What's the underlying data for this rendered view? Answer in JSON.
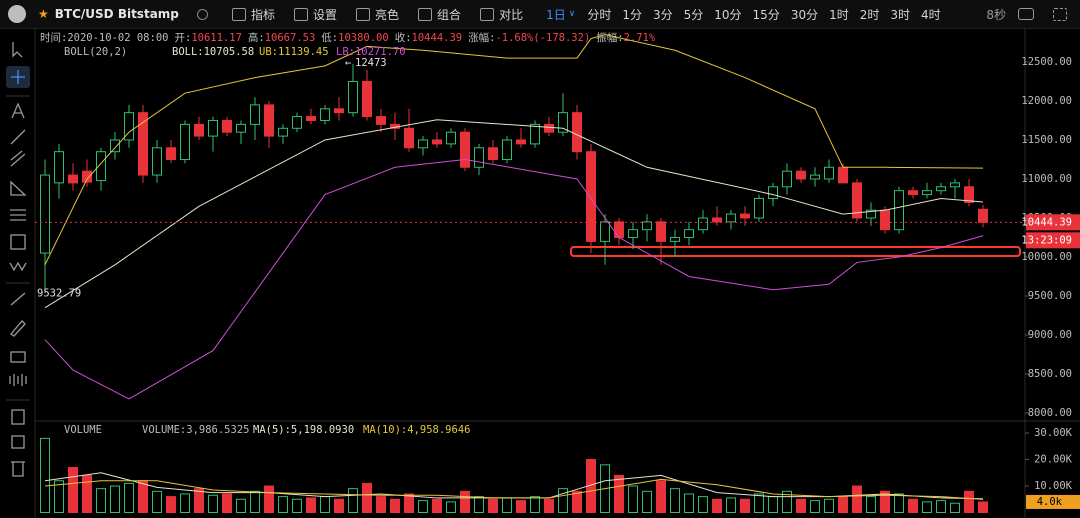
{
  "toolbar": {
    "symbol": "BTC/USD Bitstamp",
    "tools": [
      "指标",
      "设置",
      "亮色",
      "组合",
      "对比"
    ],
    "active_interval": "1日",
    "intervals": [
      "分时",
      "1分",
      "3分",
      "5分",
      "10分",
      "15分",
      "30分",
      "1时",
      "2时",
      "3时",
      "4时"
    ],
    "timer": "8秒"
  },
  "info": [
    {
      "label": "时间:",
      "value": "2020-10-02 08:00"
    },
    {
      "label": "开:",
      "value": "10611.17"
    },
    {
      "label": "高:",
      "value": "10667.53"
    },
    {
      "label": "低:",
      "value": "10380.00"
    },
    {
      "label": "收:",
      "value": "10444.39"
    },
    {
      "label": "涨幅:",
      "value": "-1.68%(-178.32)"
    },
    {
      "label": "振幅:",
      "value": "2.71%"
    }
  ],
  "chart_data": [
    {
      "type": "candlestick",
      "title": "BOLL(20,2)",
      "up_color": "#2fbf71",
      "down_color": "#e8333a",
      "ylim": [
        7910,
        12910
      ],
      "yticks": [
        {
          "value": 12500,
          "label": "12500.00"
        },
        {
          "value": 12000,
          "label": "12000.00"
        },
        {
          "value": 11500,
          "label": "11500.00"
        },
        {
          "value": 11000,
          "label": "11000.00"
        },
        {
          "value": 10500,
          "label": "10500.00"
        },
        {
          "value": 10000,
          "label": "10000.00"
        },
        {
          "value": 9500,
          "label": "9500.00"
        },
        {
          "value": 9000,
          "label": "9000.00"
        },
        {
          "value": 8500,
          "label": "8500.00"
        },
        {
          "value": 8000,
          "label": "8000.00"
        }
      ],
      "candles": [
        [
          10050,
          11250,
          9532.79,
          11050
        ],
        [
          10950,
          11450,
          10750,
          11350
        ],
        [
          11050,
          11200,
          10850,
          10950
        ],
        [
          11100,
          11250,
          10900,
          10960
        ],
        [
          10980,
          11400,
          10850,
          11350
        ],
        [
          11350,
          11600,
          11250,
          11500
        ],
        [
          11500,
          11950,
          11400,
          11850
        ],
        [
          11850,
          11950,
          10950,
          11050
        ],
        [
          11050,
          11500,
          10950,
          11400
        ],
        [
          11400,
          11500,
          11200,
          11250
        ],
        [
          11250,
          11750,
          11200,
          11700
        ],
        [
          11700,
          11800,
          11500,
          11550
        ],
        [
          11550,
          11800,
          11350,
          11750
        ],
        [
          11750,
          11800,
          11550,
          11600
        ],
        [
          11600,
          11750,
          11450,
          11700
        ],
        [
          11700,
          12050,
          11500,
          11950
        ],
        [
          11950,
          12000,
          11400,
          11550
        ],
        [
          11550,
          11700,
          11450,
          11650
        ],
        [
          11650,
          11850,
          11600,
          11800
        ],
        [
          11800,
          11900,
          11700,
          11750
        ],
        [
          11750,
          11950,
          11700,
          11900
        ],
        [
          11900,
          12050,
          11750,
          11850
        ],
        [
          11850,
          12473,
          11800,
          12250
        ],
        [
          12250,
          12400,
          11750,
          11800
        ],
        [
          11800,
          11900,
          11600,
          11700
        ],
        [
          11700,
          11850,
          11500,
          11650
        ],
        [
          11650,
          11900,
          11350,
          11400
        ],
        [
          11400,
          11550,
          11300,
          11500
        ],
        [
          11500,
          11600,
          11400,
          11450
        ],
        [
          11450,
          11650,
          11400,
          11600
        ],
        [
          11600,
          11650,
          11100,
          11150
        ],
        [
          11150,
          11450,
          11050,
          11400
        ],
        [
          11400,
          11500,
          11200,
          11250
        ],
        [
          11250,
          11550,
          11200,
          11500
        ],
        [
          11500,
          11650,
          11400,
          11450
        ],
        [
          11450,
          11750,
          11400,
          11700
        ],
        [
          11700,
          11800,
          11550,
          11600
        ],
        [
          11600,
          12100,
          11550,
          11850
        ],
        [
          11850,
          11950,
          11250,
          11350
        ],
        [
          11350,
          11450,
          10050,
          10200
        ],
        [
          10200,
          10550,
          9900,
          10450
        ],
        [
          10450,
          10500,
          10150,
          10250
        ],
        [
          10250,
          10450,
          10100,
          10350
        ],
        [
          10350,
          10550,
          10200,
          10450
        ],
        [
          10450,
          10500,
          9900,
          10200
        ],
        [
          10200,
          10350,
          10000,
          10250
        ],
        [
          10250,
          10450,
          10150,
          10350
        ],
        [
          10350,
          10600,
          10300,
          10500
        ],
        [
          10500,
          10650,
          10400,
          10450
        ],
        [
          10450,
          10600,
          10350,
          10550
        ],
        [
          10550,
          10650,
          10400,
          10500
        ],
        [
          10500,
          10800,
          10450,
          10750
        ],
        [
          10750,
          10950,
          10650,
          10900
        ],
        [
          10900,
          11200,
          10800,
          11100
        ],
        [
          11100,
          11150,
          10950,
          11000
        ],
        [
          11000,
          11150,
          10900,
          11050
        ],
        [
          11000,
          11250,
          10950,
          11150
        ],
        [
          11150,
          11200,
          10950,
          10950
        ],
        [
          10950,
          11000,
          10450,
          10500
        ],
        [
          10500,
          10700,
          10400,
          10600
        ],
        [
          10600,
          10650,
          10300,
          10350
        ],
        [
          10350,
          10900,
          10300,
          10850
        ],
        [
          10850,
          10900,
          10750,
          10800
        ],
        [
          10800,
          10950,
          10750,
          10850
        ],
        [
          10850,
          10950,
          10800,
          10900
        ],
        [
          10900,
          11000,
          10750,
          10950
        ],
        [
          10900,
          11000,
          10650,
          10700
        ],
        [
          10611.17,
          10667.53,
          10380,
          10444.39
        ]
      ],
      "series": [
        {
          "name": "BOLL:10705.58",
          "color": "#e8e4c8",
          "x": [
            0,
            5,
            11,
            20,
            28,
            37,
            43,
            52,
            57,
            60,
            64,
            67
          ],
          "values": [
            9350,
            9900,
            10650,
            11500,
            11760,
            11650,
            11150,
            10800,
            10550,
            10600,
            10750,
            10705.58
          ]
        },
        {
          "name": "UB:11139.45",
          "color": "#e6c63a",
          "x": [
            0,
            3,
            6,
            10,
            15,
            20,
            23,
            27,
            33,
            38,
            39,
            40,
            45,
            50,
            55,
            57,
            60,
            67
          ],
          "values": [
            9900,
            11000,
            11600,
            12100,
            12300,
            12450,
            12700,
            12650,
            12550,
            12550,
            12800,
            12850,
            12650,
            12300,
            11900,
            11150,
            11150,
            11139.45
          ]
        },
        {
          "name": "LB:10271.70",
          "color": "#d04fd6",
          "x": [
            0,
            2,
            6,
            12,
            20,
            25,
            30,
            38,
            41,
            46,
            52,
            56,
            58,
            61,
            64,
            67
          ],
          "values": [
            8940,
            8550,
            8180,
            8800,
            10800,
            11150,
            11250,
            11000,
            10250,
            9750,
            9580,
            9650,
            9930,
            10000,
            10120,
            10271.7
          ]
        }
      ],
      "annotations": {
        "high": "12473",
        "low": "9532.79"
      },
      "last_price": {
        "value": 10444.39,
        "label": "10444.39"
      },
      "countdown": "13:23:09"
    },
    {
      "type": "bar",
      "title": "VOLUME",
      "current_label": "VOLUME:3,986.5325",
      "ylim": [
        0,
        33800
      ],
      "yticks": [
        {
          "value": 30000,
          "label": "30.00K"
        },
        {
          "value": 20000,
          "label": "20.00K"
        },
        {
          "value": 10000,
          "label": "10.00K"
        }
      ],
      "values": [
        28000,
        12000,
        17000,
        14000,
        9000,
        10000,
        11000,
        12000,
        8000,
        6000,
        7000,
        9000,
        6500,
        7000,
        5000,
        8000,
        10000,
        6000,
        5000,
        5500,
        6000,
        5000,
        9000,
        11000,
        6000,
        5000,
        7000,
        4500,
        5000,
        4000,
        8000,
        6000,
        5000,
        5500,
        4500,
        6000,
        5000,
        9000,
        8000,
        20000,
        18000,
        14000,
        10000,
        8000,
        12000,
        9000,
        7000,
        6000,
        5000,
        5500,
        5000,
        7000,
        6000,
        8000,
        5000,
        4500,
        5000,
        6000,
        10000,
        6000,
        8000,
        7000,
        5000,
        4000,
        4500,
        3500,
        8000,
        3986.5325
      ],
      "series": [
        {
          "name": "MA(5):5,198.0930",
          "color": "#e8e4c8",
          "x": [
            0,
            4,
            8,
            12,
            16,
            20,
            24,
            28,
            32,
            36,
            40,
            44,
            48,
            52,
            56,
            60,
            64,
            67
          ],
          "values": [
            12000,
            15000,
            9500,
            7500,
            7500,
            6000,
            7000,
            5500,
            5500,
            5500,
            12000,
            14000,
            7500,
            6000,
            6000,
            7000,
            5500,
            5198.093
          ]
        },
        {
          "name": "MA(10):4,958.9646",
          "color": "#e6c63a",
          "x": [
            0,
            4,
            8,
            12,
            16,
            20,
            24,
            28,
            32,
            36,
            40,
            44,
            48,
            52,
            56,
            60,
            64,
            67
          ],
          "values": [
            10000,
            12000,
            12000,
            8500,
            7500,
            7000,
            6500,
            6500,
            5500,
            5500,
            9000,
            12500,
            10500,
            7000,
            6000,
            6500,
            6000,
            4958.9646
          ]
        }
      ],
      "last_label": "4.0k"
    }
  ]
}
